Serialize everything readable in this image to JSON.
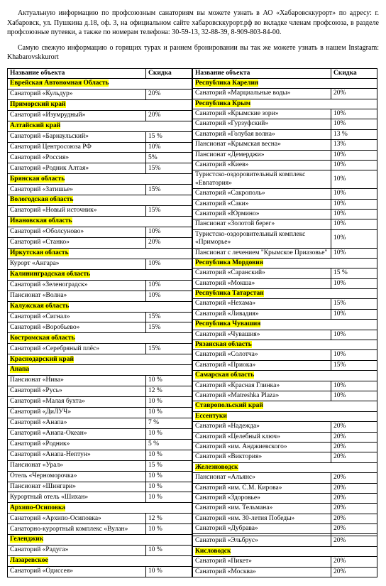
{
  "paragraphs": {
    "p1": "Актуальную информацию по профсоюзным санаториям вы можете узнать в АО «Хабаровсккурорт» по адресу: г. Хабаровск, ул. Пушкина д.18, оф. 3, на официальном сайте хабаровсккурорт.рф во вкладке членам профсоюза, в разделе профсоюзные путевки, а также по номерам телефона: 30-59-13, 32-88-39, 8-909-803-84-00.",
    "p2": "Самую свежую информацию о горящих турах и раннем бронировании вы так же можете узнать в нашем Instagram: Khabarovskkurort"
  },
  "headers": {
    "name": "Название объекта",
    "disc": "Скидка"
  },
  "left": [
    {
      "r": 1,
      "t": "Еврейская Автономная Область"
    },
    {
      "n": "Санаторий «Кульдур»",
      "p": "20%"
    },
    {
      "r": 1,
      "t": "Приморский край"
    },
    {
      "n": "Санаторий «Изумрудный»",
      "p": "20%"
    },
    {
      "r": 1,
      "t": "Алтайский край"
    },
    {
      "n": "Санаторий «Барнаульский»",
      "p": "15 %"
    },
    {
      "n": "Санаторий Центросоюза РФ",
      "p": "10%"
    },
    {
      "n": "Санаторий «Россия»",
      "p": "5%"
    },
    {
      "n": "Санаторий «Родник Алтая»",
      "p": "15%"
    },
    {
      "r": 1,
      "t": "Брянская область"
    },
    {
      "n": "Санаторий «Затишье»",
      "p": "15%"
    },
    {
      "r": 1,
      "t": "Вологодская область"
    },
    {
      "n": "Санаторий «Новый источник»",
      "p": "15%"
    },
    {
      "r": 1,
      "t": "Ивановская область"
    },
    {
      "n": "Санаторий «Оболсуново»",
      "p": "10%"
    },
    {
      "n": "Санаторий «Станко»",
      "p": "20%"
    },
    {
      "r": 1,
      "t": "Иркутская область"
    },
    {
      "n": "Курорт «Ангара»",
      "p": "10%"
    },
    {
      "r": 1,
      "t": "Калининградская область"
    },
    {
      "n": "Санаторий «Зеленоградск»",
      "p": "10%"
    },
    {
      "n": "Пансионат «Волна»",
      "p": "10%"
    },
    {
      "r": 1,
      "t": "Калужская область"
    },
    {
      "n": "Санаторий «Сигнал»",
      "p": "15%"
    },
    {
      "n": "Санаторий «Воробьево»",
      "p": "15%"
    },
    {
      "r": 1,
      "t": "Костромская область"
    },
    {
      "n": "Санаторий «Серебряный плёс»",
      "p": "15%"
    },
    {
      "r": 1,
      "t": "Краснодарский край"
    },
    {
      "r": 1,
      "t": "Анапа"
    },
    {
      "n": "Пансионат «Нива»",
      "p": "10 %"
    },
    {
      "n": "Санаторий «Русь»",
      "p": "12 %"
    },
    {
      "n": "Санаторий «Малая бухта»",
      "p": "10 %"
    },
    {
      "n": "Санаторий «ДиЛУЧ»",
      "p": "10 %"
    },
    {
      "n": "Санаторий «Анапа»",
      "p": "7 %"
    },
    {
      "n": "Санаторий «Анапа-Океан»",
      "p": "10 %"
    },
    {
      "n": "Санаторий «Родник»",
      "p": "5 %"
    },
    {
      "n": "Санаторий «Анапа-Нептун»",
      "p": "10 %"
    },
    {
      "n": "Пансионат «Урал»",
      "p": "15 %"
    },
    {
      "n": "Отель «Черноморочка»",
      "p": "10 %"
    },
    {
      "n": "Пансионат «Шингари»",
      "p": "10 %"
    },
    {
      "n": "Курортный отель «Шихан»",
      "p": "10 %"
    },
    {
      "r": 1,
      "t": "Архипо-Осиповка"
    },
    {
      "n": "Санаторий «Архипо-Осиповка»",
      "p": "12 %"
    },
    {
      "n": "Санаторно-курортный комплекс «Вулан»",
      "p": "10 %"
    },
    {
      "r": 1,
      "t": "Геленджик"
    },
    {
      "n": "Санаторий «Радуга»",
      "p": "10 %"
    },
    {
      "r": 1,
      "t": "Лазаревское"
    },
    {
      "n": "Санаторий «Одиссея»",
      "p": "10 %"
    }
  ],
  "right": [
    {
      "r": 1,
      "t": "Республика Карелия"
    },
    {
      "n": "Санаторий «Марциальные воды»",
      "p": "20%"
    },
    {
      "r": 1,
      "t": "Республика Крым"
    },
    {
      "n": "Санаторий «Крымские зори»",
      "p": "10%"
    },
    {
      "n": "Санаторий «Гурзуфский»",
      "p": "10%"
    },
    {
      "n": "Санаторий «Голубая волна»",
      "p": "13 %"
    },
    {
      "n": "Пансионат «Крымская весна»",
      "p": "13%"
    },
    {
      "n": "Пансионат «Демерджи»",
      "p": "10%"
    },
    {
      "n": "Санаторий «Киев»",
      "p": "10%"
    },
    {
      "n": "Туристско-оздоровительный комплекс «Евпатория»",
      "p": "10%"
    },
    {
      "n": "Санаторий «Сакрополь»",
      "p": "10%"
    },
    {
      "n": "Санаторий «Саки»",
      "p": "10%"
    },
    {
      "n": "Санаторий «Юрмино»",
      "p": "10%"
    },
    {
      "n": "Пансионат «Золотой берег»",
      "p": "10%"
    },
    {
      "n": "Туристско-оздоровительный комплекс «Приморье»",
      "p": "10%"
    },
    {
      "n": "Пансионат с лечением \"Крымское Приазовье\"",
      "p": "10%"
    },
    {
      "r": 1,
      "t": "Республика Мордовия"
    },
    {
      "n": "Санаторий «Саранский»",
      "p": "15 %"
    },
    {
      "n": "Санаторий «Мокша»",
      "p": "10%"
    },
    {
      "r": 1,
      "t": "Республика Татарстан"
    },
    {
      "n": "Санаторий «Нехама»",
      "p": "15%"
    },
    {
      "n": "Санаторий «Ливадия»",
      "p": "10%"
    },
    {
      "r": 1,
      "t": "Республика Чувашия"
    },
    {
      "n": "Санаторий «Чувашия»",
      "p": "10%"
    },
    {
      "r": 1,
      "t": "Рязанская область"
    },
    {
      "n": "Санаторий «Солотча»",
      "p": "10%"
    },
    {
      "n": "Санаторий «Приока»",
      "p": "15%"
    },
    {
      "r": 1,
      "t": "Самарская область"
    },
    {
      "n": "Санаторий «Красная Глинка»",
      "p": "10%"
    },
    {
      "n": "Санаторий «Matreshka Plaza»",
      "p": "10%"
    },
    {
      "r": 1,
      "t": "Ставропольский край"
    },
    {
      "r": 1,
      "t": "Ессентуки"
    },
    {
      "n": "Санаторий «Надежда»",
      "p": "20%"
    },
    {
      "n": "Санаторий «Целебный ключ»",
      "p": "20%"
    },
    {
      "n": "Санаторий «им. Анджиевского»",
      "p": "20%"
    },
    {
      "n": "Санаторий «Виктория»",
      "p": "20%"
    },
    {
      "r": 1,
      "t": "Железноводск"
    },
    {
      "n": "Пансионат «Альянс»",
      "p": "20%"
    },
    {
      "n": "Санаторий «им. С.М. Кирова»",
      "p": "20%"
    },
    {
      "n": "Санаторий «Здоровье»",
      "p": "20%"
    },
    {
      "n": "Санаторий «им. Тельмана»",
      "p": "20%"
    },
    {
      "n": "Санаторий «им. 30-летия Победы»",
      "p": "20%"
    },
    {
      "n": "Санаторий «Дубрава»",
      "p": "20%"
    },
    {
      "n": "",
      "p": ""
    },
    {
      "n": "Санаторий «Эльбрус»",
      "p": "20%"
    },
    {
      "r": 1,
      "t": "Кисловодск"
    },
    {
      "n": "Санаторий «Пикет»",
      "p": "20%"
    },
    {
      "n": "Санаторий «Москва»",
      "p": "20%"
    }
  ]
}
